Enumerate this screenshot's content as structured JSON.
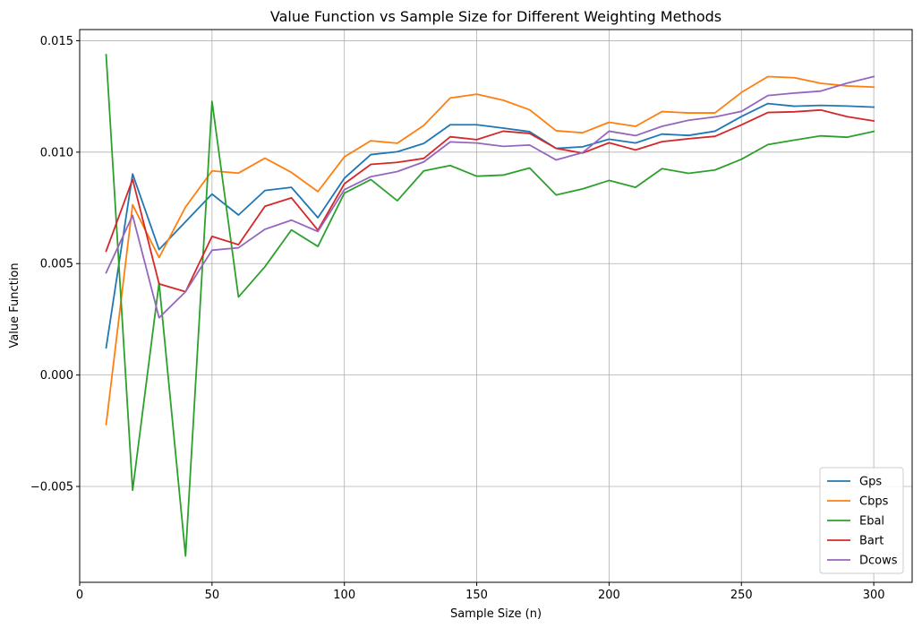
{
  "chart_data": {
    "type": "line",
    "title": "Value Function vs Sample Size for Different Weighting Methods",
    "xlabel": "Sample Size (n)",
    "ylabel": "Value Function",
    "xlim": [
      0,
      314.5
    ],
    "ylim": [
      -0.0093,
      0.0155
    ],
    "xticks": [
      0,
      50,
      100,
      150,
      200,
      250,
      300
    ],
    "xtick_labels": [
      "0",
      "50",
      "100",
      "150",
      "200",
      "250",
      "300"
    ],
    "yticks": [
      -0.005,
      0.0,
      0.005,
      0.01,
      0.015
    ],
    "ytick_labels": [
      "−0.005",
      "0.000",
      "0.005",
      "0.010",
      "0.015"
    ],
    "grid": true,
    "legend_position": "lower-right",
    "x": [
      10,
      20,
      30,
      40,
      50,
      60,
      70,
      80,
      90,
      100,
      110,
      120,
      130,
      140,
      150,
      160,
      170,
      180,
      190,
      200,
      210,
      220,
      230,
      240,
      250,
      260,
      270,
      280,
      290,
      300
    ],
    "series": [
      {
        "name": "Gps",
        "color": "#1f77b4",
        "values": [
          0.00122,
          0.00902,
          0.00563,
          0.00688,
          0.00812,
          0.00718,
          0.00828,
          0.00842,
          0.00706,
          0.00883,
          0.00989,
          0.01002,
          0.01039,
          0.01123,
          0.01123,
          0.01108,
          0.01092,
          0.01017,
          0.01024,
          0.01058,
          0.01041,
          0.01081,
          0.01075,
          0.01094,
          0.0116,
          0.01218,
          0.01206,
          0.0121,
          0.01207,
          0.01202
        ]
      },
      {
        "name": "Cbps",
        "color": "#ff7f0e",
        "values": [
          -0.00222,
          0.00764,
          0.00527,
          0.00754,
          0.00916,
          0.00906,
          0.00973,
          0.00909,
          0.00823,
          0.00979,
          0.01051,
          0.0104,
          0.0112,
          0.01243,
          0.0126,
          0.01233,
          0.0119,
          0.01096,
          0.01087,
          0.01134,
          0.01116,
          0.01182,
          0.01176,
          0.01176,
          0.01268,
          0.01339,
          0.01334,
          0.01309,
          0.01297,
          0.01292
        ]
      },
      {
        "name": "Ebal",
        "color": "#2ca02c",
        "values": [
          0.01437,
          -0.00517,
          0.00414,
          -0.00812,
          0.01228,
          0.0035,
          0.00486,
          0.00651,
          0.00577,
          0.00816,
          0.00877,
          0.00782,
          0.00916,
          0.0094,
          0.00892,
          0.00897,
          0.00929,
          0.00808,
          0.00835,
          0.00873,
          0.00842,
          0.00926,
          0.00905,
          0.0092,
          0.00968,
          0.01034,
          0.01054,
          0.01073,
          0.01067,
          0.01093
        ]
      },
      {
        "name": "Bart",
        "color": "#d62728",
        "values": [
          0.00556,
          0.00878,
          0.00409,
          0.00374,
          0.00622,
          0.00585,
          0.00757,
          0.00795,
          0.0065,
          0.00858,
          0.00945,
          0.00954,
          0.00972,
          0.01069,
          0.01056,
          0.01094,
          0.01084,
          0.01017,
          0.00996,
          0.01042,
          0.0101,
          0.01047,
          0.0106,
          0.01071,
          0.01122,
          0.01178,
          0.01181,
          0.01189,
          0.01159,
          0.0114
        ]
      },
      {
        "name": "Dcows",
        "color": "#9467bd",
        "values": [
          0.00459,
          0.00716,
          0.00257,
          0.00374,
          0.0056,
          0.00571,
          0.00654,
          0.00695,
          0.00644,
          0.00832,
          0.0089,
          0.00913,
          0.00956,
          0.01046,
          0.01041,
          0.01026,
          0.01032,
          0.00965,
          0.00998,
          0.01094,
          0.01074,
          0.01116,
          0.01143,
          0.01158,
          0.01183,
          0.01254,
          0.01265,
          0.01274,
          0.0131,
          0.01339
        ]
      }
    ]
  }
}
